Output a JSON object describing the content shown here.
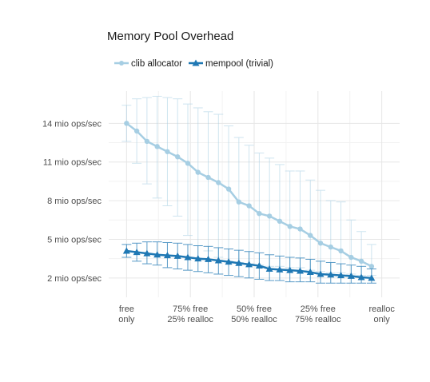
{
  "chart_data": {
    "type": "line",
    "title": "Memory Pool Overhead",
    "xlabel": "",
    "ylabel": "",
    "legend_position": "top-left",
    "grid": true,
    "y_ticks": [
      {
        "value": 2,
        "label": "2 mio ops/sec"
      },
      {
        "value": 5,
        "label": "5 mio ops/sec"
      },
      {
        "value": 8,
        "label": "8 mio ops/sec"
      },
      {
        "value": 11,
        "label": "11 mio ops/sec"
      },
      {
        "value": 14,
        "label": "14 mio ops/sec"
      }
    ],
    "ylim": [
      0.5,
      16.5
    ],
    "x_ticks": [
      {
        "value": 0,
        "lines": [
          "free",
          "only"
        ]
      },
      {
        "value": 25,
        "lines": [
          "75% free",
          "25% realloc"
        ]
      },
      {
        "value": 50,
        "lines": [
          "50% free",
          "50% realloc"
        ]
      },
      {
        "value": 75,
        "lines": [
          "25% free",
          "75% realloc"
        ]
      },
      {
        "value": 100,
        "lines": [
          "realloc",
          "only"
        ]
      }
    ],
    "xlim": [
      -7,
      107
    ],
    "x": [
      0,
      4,
      8,
      12,
      16,
      20,
      24,
      28,
      32,
      36,
      40,
      44,
      48,
      52,
      56,
      60,
      64,
      68,
      72,
      76,
      80,
      84,
      88,
      92,
      96
    ],
    "series": [
      {
        "name": "clib allocator",
        "color": "#a6cee3",
        "marker": "circle",
        "values": [
          14.0,
          13.4,
          12.6,
          12.2,
          11.8,
          11.4,
          10.9,
          10.2,
          9.8,
          9.4,
          8.9,
          7.9,
          7.6,
          7.0,
          6.8,
          6.4,
          6.0,
          5.8,
          5.3,
          4.7,
          4.4,
          4.1,
          3.6,
          3.3,
          2.9
        ],
        "err_low": [
          12.6,
          10.9,
          9.3,
          8.2,
          7.6,
          6.8,
          5.3,
          4.5,
          4.1,
          3.6,
          3.3,
          3.2,
          3.1,
          3.0,
          2.9,
          2.9,
          2.8,
          2.8,
          2.6,
          2.5,
          2.4,
          2.4,
          2.3,
          2.2,
          2.2
        ],
        "err_high": [
          15.4,
          15.9,
          16.0,
          16.1,
          16.0,
          15.9,
          15.5,
          15.2,
          14.9,
          14.7,
          13.8,
          12.9,
          12.3,
          11.7,
          11.3,
          10.8,
          10.3,
          10.3,
          9.6,
          8.8,
          8.0,
          7.9,
          6.5,
          5.6,
          4.6
        ]
      },
      {
        "name": "mempool (trivial)",
        "color": "#1f78b4",
        "marker": "triangle",
        "values": [
          4.1,
          4.0,
          3.9,
          3.8,
          3.75,
          3.7,
          3.6,
          3.5,
          3.45,
          3.35,
          3.25,
          3.15,
          3.05,
          2.95,
          2.7,
          2.65,
          2.6,
          2.55,
          2.45,
          2.3,
          2.25,
          2.2,
          2.15,
          2.05,
          2.0
        ],
        "err_low": [
          3.6,
          3.3,
          3.1,
          3.0,
          2.8,
          2.7,
          2.6,
          2.5,
          2.4,
          2.3,
          2.2,
          2.1,
          2.0,
          1.9,
          1.8,
          1.8,
          1.7,
          1.7,
          1.7,
          1.6,
          1.6,
          1.6,
          1.6,
          1.6,
          1.6
        ],
        "err_high": [
          4.6,
          4.7,
          4.8,
          4.8,
          4.75,
          4.7,
          4.6,
          4.5,
          4.45,
          4.35,
          4.25,
          4.15,
          4.05,
          3.95,
          3.8,
          3.7,
          3.6,
          3.55,
          3.45,
          3.3,
          3.2,
          3.1,
          3.0,
          2.9,
          2.7
        ]
      }
    ]
  }
}
